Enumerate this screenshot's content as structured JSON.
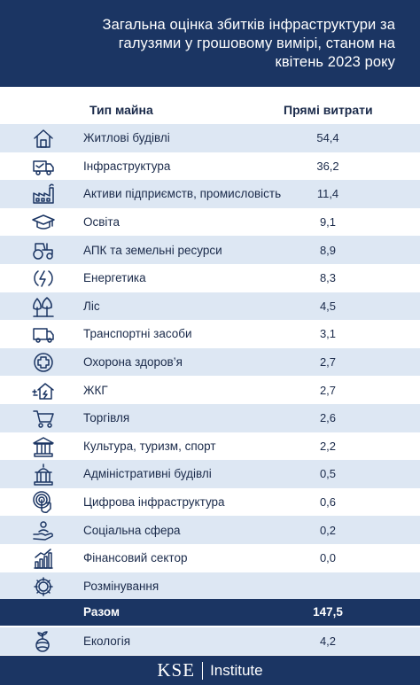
{
  "header": {
    "title_line1": "Загальна оцінка збитків інфраструктури за",
    "title_line2": "галузями у грошовому вимірі, станом на",
    "title_line3": "квітень 2023 року"
  },
  "columns": {
    "type": "Тип майна",
    "cost": "Прямі витрати"
  },
  "rows": [
    {
      "icon": "house-icon",
      "label": "Житлові будівлі",
      "value": "54,4"
    },
    {
      "icon": "truck-icon",
      "label": "Інфраструктура",
      "value": "36,2"
    },
    {
      "icon": "factory-icon",
      "label": "Активи підприємств, промисловість",
      "value": "11,4"
    },
    {
      "icon": "graduation-cap-icon",
      "label": "Освіта",
      "value": "9,1"
    },
    {
      "icon": "tractor-icon",
      "label": "АПК та земельні ресурси",
      "value": "8,9"
    },
    {
      "icon": "energy-icon",
      "label": "Енергетика",
      "value": "8,3"
    },
    {
      "icon": "trees-icon",
      "label": "Ліс",
      "value": "4,5"
    },
    {
      "icon": "van-icon",
      "label": "Транспортні засоби",
      "value": "3,1"
    },
    {
      "icon": "medical-cross-icon",
      "label": "Охорона здоров’я",
      "value": "2,7"
    },
    {
      "icon": "utility-house-icon",
      "label": "ЖКГ",
      "value": "2,7"
    },
    {
      "icon": "shopping-cart-icon",
      "label": "Торгівля",
      "value": "2,6"
    },
    {
      "icon": "museum-icon",
      "label": "Культура, туризм, спорт",
      "value": "2,2"
    },
    {
      "icon": "government-building-icon",
      "label": "Адміністративні будівлі",
      "value": "0,5"
    },
    {
      "icon": "digital-hand-icon",
      "label": "Цифрова інфраструктура",
      "value": "0,6"
    },
    {
      "icon": "social-hand-icon",
      "label": "Соціальна сфера",
      "value": "0,2"
    },
    {
      "icon": "finance-chart-icon",
      "label": "Фінансовий сектор",
      "value": "0,0"
    },
    {
      "icon": "demining-gear-icon",
      "label": "Розмінування",
      "value": ""
    }
  ],
  "total": {
    "label": "Разом",
    "value": "147,5"
  },
  "extra": {
    "icon": "plant-globe-icon",
    "label": "Екологія",
    "value": "4,2"
  },
  "footer": {
    "brand": "KSE",
    "institute": "Institute"
  },
  "colors": {
    "navy": "#1b3563",
    "stripe": "#dde7f3"
  }
}
